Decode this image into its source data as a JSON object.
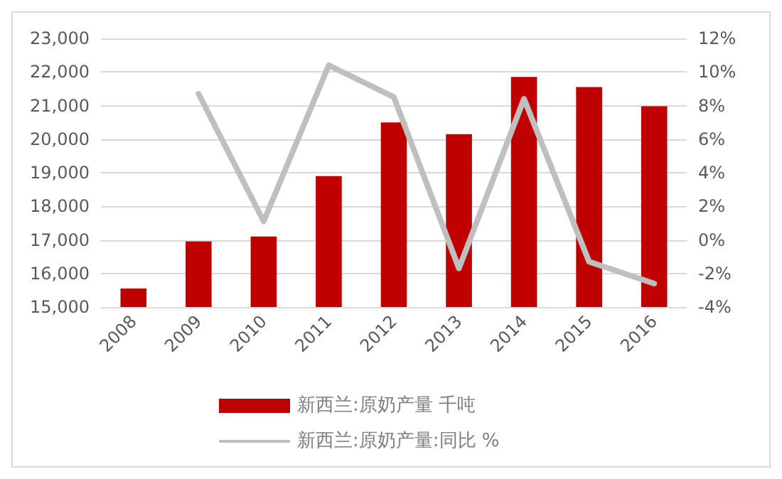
{
  "chart_data": {
    "type": "bar",
    "categories": [
      "2008",
      "2009",
      "2010",
      "2011",
      "2012",
      "2013",
      "2014",
      "2015",
      "2016"
    ],
    "series": [
      {
        "name": "新西兰:原奶产量 千吨",
        "color": "#c00000",
        "values": [
          15550,
          16950,
          17100,
          18900,
          20500,
          20150,
          21850,
          21550,
          20980
        ]
      },
      {
        "name": "新西兰:原奶产量:同比 %",
        "type": "line",
        "axis": "y2",
        "color": "#bfbfbf",
        "values": [
          null,
          8.7,
          1.1,
          10.4,
          8.5,
          -1.7,
          8.4,
          -1.3,
          -2.6
        ]
      }
    ],
    "ylim": [
      15000,
      23000
    ],
    "yticks": [
      {
        "value": 15000,
        "label": "15,000"
      },
      {
        "value": 16000,
        "label": "16,000"
      },
      {
        "value": 17000,
        "label": "17,000"
      },
      {
        "value": 18000,
        "label": "18,000"
      },
      {
        "value": 19000,
        "label": "19,000"
      },
      {
        "value": 20000,
        "label": "20,000"
      },
      {
        "value": 21000,
        "label": "21,000"
      },
      {
        "value": 22000,
        "label": "22,000"
      },
      {
        "value": 23000,
        "label": "23,000"
      }
    ],
    "y2lim": [
      -4,
      12
    ],
    "y2ticks": [
      {
        "value": -4,
        "label": "-4%"
      },
      {
        "value": -2,
        "label": "-2%"
      },
      {
        "value": 0,
        "label": "0%"
      },
      {
        "value": 2,
        "label": "2%"
      },
      {
        "value": 4,
        "label": "4%"
      },
      {
        "value": 6,
        "label": "6%"
      },
      {
        "value": 8,
        "label": "8%"
      },
      {
        "value": 10,
        "label": "10%"
      },
      {
        "value": 12,
        "label": "12%"
      }
    ],
    "grid": "y",
    "legend": "bottom",
    "marker": "none",
    "line_style": "solid"
  }
}
